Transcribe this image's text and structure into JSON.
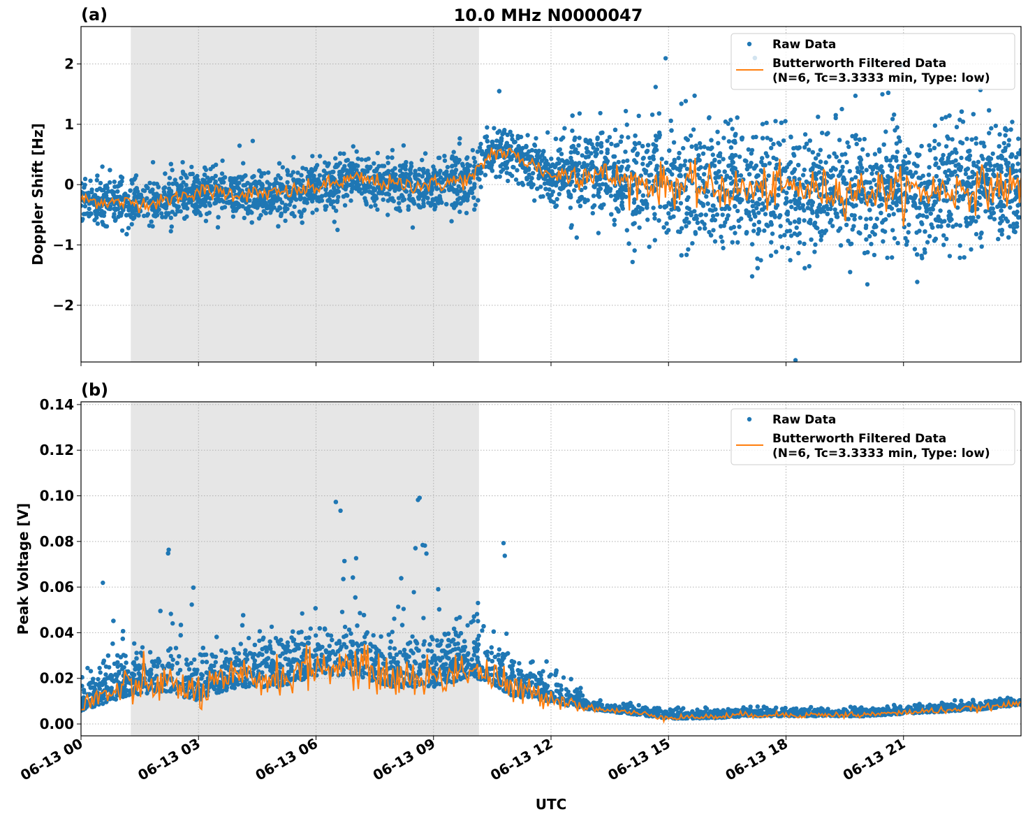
{
  "title": "10.0 MHz N0000047",
  "xlabel": "UTC",
  "x_tick_labels": [
    "06-13 00",
    "06-13 03",
    "06-13 06",
    "06-13 09",
    "06-13 12",
    "06-13 15",
    "06-13 18",
    "06-13 21"
  ],
  "x_ticks_hours": [
    0,
    3,
    6,
    9,
    12,
    15,
    18,
    21
  ],
  "xlim_hours": [
    0,
    24
  ],
  "shaded_interval_hours": [
    1.27,
    10.16
  ],
  "colors": {
    "raw": "#1f77b4",
    "filtered": "#ff7f0e",
    "shade": "#e6e6e6"
  },
  "legend": {
    "raw": "Raw Data",
    "filtered_line1": "Butterworth Filtered Data",
    "filtered_line2": "(N=6, Tc=3.3333 min, Type: low)",
    "placement": "upper right"
  },
  "chart_data": [
    {
      "type": "scatter+line",
      "panel_label": "(a)",
      "ylabel": "Doppler Shift [Hz]",
      "ylim": [
        -2.94,
        2.62
      ],
      "y_ticks": [
        -2,
        -1,
        0,
        1,
        2
      ],
      "y_tick_labels": [
        "−2",
        "−1",
        "0",
        "1",
        "2"
      ],
      "grid": true,
      "filtered_hours": [
        0,
        1,
        2,
        3,
        4,
        5,
        6,
        7,
        8,
        9,
        10,
        10.5,
        11,
        11.5,
        12,
        13,
        14,
        15,
        16,
        17,
        18,
        19,
        20,
        21,
        22,
        23,
        24
      ],
      "filtered_values": [
        -0.25,
        -0.3,
        -0.3,
        -0.1,
        -0.15,
        -0.15,
        -0.05,
        0.1,
        0.0,
        0.0,
        0.1,
        0.55,
        0.5,
        0.35,
        0.15,
        0.2,
        0.05,
        0.0,
        -0.05,
        -0.1,
        -0.05,
        -0.1,
        -0.1,
        -0.1,
        -0.1,
        -0.05,
        -0.05
      ],
      "raw_spread_hours": [
        0,
        10,
        10.2,
        12,
        12.5,
        14,
        15,
        24
      ],
      "raw_spread": [
        0.25,
        0.3,
        0.3,
        0.3,
        0.5,
        0.55,
        0.7,
        0.7
      ]
    },
    {
      "type": "scatter+line",
      "panel_label": "(b)",
      "ylabel": "Peak Voltage [V]",
      "ylim": [
        -0.0052,
        0.1412
      ],
      "y_ticks": [
        0,
        0.02,
        0.04,
        0.06,
        0.08,
        0.1,
        0.12,
        0.14
      ],
      "y_tick_labels": [
        "0.00",
        "0.02",
        "0.04",
        "0.06",
        "0.08",
        "0.10",
        "0.12",
        "0.14"
      ],
      "grid": true,
      "filtered_hours": [
        0,
        1,
        2,
        3,
        4,
        5,
        6,
        7,
        8,
        9,
        10,
        11,
        12,
        13,
        14,
        15,
        16,
        17,
        18,
        19,
        20,
        21,
        22,
        23,
        24
      ],
      "filtered_values": [
        0.008,
        0.015,
        0.018,
        0.014,
        0.02,
        0.02,
        0.025,
        0.025,
        0.02,
        0.02,
        0.025,
        0.015,
        0.012,
        0.007,
        0.005,
        0.003,
        0.003,
        0.004,
        0.004,
        0.004,
        0.004,
        0.005,
        0.006,
        0.007,
        0.009
      ],
      "raw_spread_hours": [
        0,
        1,
        10.3,
        11,
        12.5,
        13,
        24
      ],
      "raw_spread": [
        0.008,
        0.012,
        0.014,
        0.01,
        0.006,
        0.002,
        0.002
      ]
    }
  ]
}
